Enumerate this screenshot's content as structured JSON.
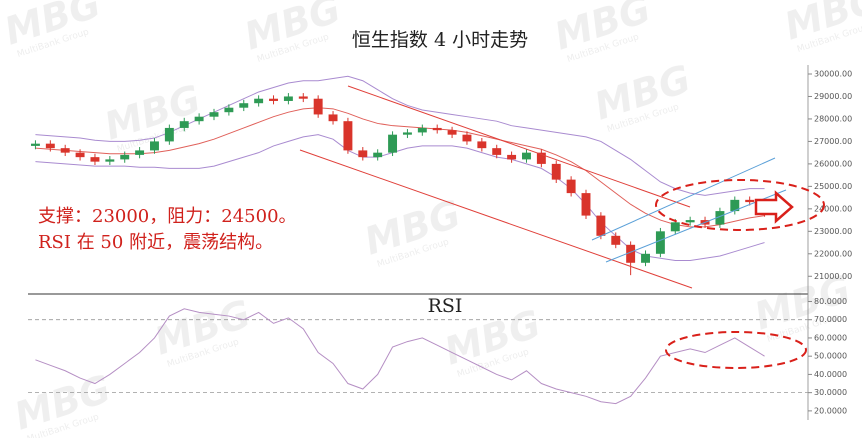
{
  "chart_data": [
    {
      "type": "candlestick",
      "title": "恒生指数 4 小时走势",
      "up_color": "#2e9a55",
      "down_color": "#d9342b",
      "candles": {
        "open": [
          26800,
          26900,
          26700,
          26500,
          26300,
          26100,
          26200,
          26400,
          26600,
          27000,
          27600,
          27900,
          28100,
          28300,
          28500,
          28700,
          28900,
          28800,
          29000,
          28900,
          28200,
          27900,
          26600,
          26300,
          26500,
          27300,
          27400,
          27600,
          27500,
          27300,
          27000,
          26700,
          26400,
          26200,
          26500,
          26000,
          25300,
          24700,
          23700,
          22800,
          22400,
          21600,
          22000,
          23000,
          23400,
          23500,
          23300,
          23900,
          24400,
          24300
        ],
        "high": [
          27050,
          27050,
          26850,
          26650,
          26450,
          26350,
          26550,
          26750,
          27150,
          27750,
          28050,
          28250,
          28450,
          28650,
          28850,
          29050,
          29050,
          29150,
          29150,
          29050,
          28350,
          28050,
          26750,
          26650,
          27450,
          27550,
          27750,
          27750,
          27650,
          27450,
          27150,
          26850,
          26550,
          26650,
          26650,
          26150,
          25450,
          24850,
          23850,
          22950,
          22550,
          22150,
          23150,
          23550,
          23650,
          23650,
          24050,
          24550,
          24550,
          24450
        ],
        "low": [
          26650,
          26550,
          26350,
          26150,
          25950,
          25950,
          26050,
          26250,
          26450,
          26850,
          27450,
          27750,
          27950,
          28150,
          28350,
          28550,
          28650,
          28650,
          28750,
          28050,
          27750,
          26450,
          26150,
          26150,
          26350,
          27150,
          27250,
          27350,
          27150,
          26850,
          26550,
          26250,
          26050,
          26050,
          25850,
          25150,
          24550,
          23550,
          22650,
          22250,
          21050,
          21450,
          21850,
          22850,
          23250,
          23150,
          23150,
          23750,
          24150,
          23650
        ],
        "close": [
          26900,
          26700,
          26500,
          26300,
          26100,
          26200,
          26400,
          26600,
          27000,
          27600,
          27900,
          28100,
          28300,
          28500,
          28700,
          28900,
          28800,
          29000,
          28900,
          28200,
          27900,
          26600,
          26300,
          26500,
          27300,
          27400,
          27600,
          27500,
          27300,
          27000,
          26700,
          26400,
          26200,
          26500,
          26000,
          25300,
          24700,
          23700,
          22800,
          22400,
          21600,
          22000,
          23000,
          23400,
          23500,
          23300,
          23900,
          24400,
          24300,
          23800
        ]
      },
      "series": [
        {
          "color": "#a98bd0",
          "values": [
            27300,
            27250,
            27200,
            27150,
            27050,
            27000,
            27000,
            27050,
            27150,
            27400,
            27700,
            28000,
            28300,
            28600,
            28900,
            29200,
            29400,
            29600,
            29700,
            29700,
            29800,
            29900,
            29700,
            29300,
            28900,
            28600,
            28400,
            28300,
            28200,
            28100,
            28000,
            27900,
            27700,
            27600,
            27500,
            27400,
            27300,
            27200,
            27000,
            26600,
            26200,
            25700,
            25200,
            24900,
            24700,
            24600,
            24700,
            24800,
            24900,
            24900
          ]
        },
        {
          "color": "#e0605a",
          "values": [
            26700,
            26650,
            26600,
            26550,
            26500,
            26450,
            26450,
            26450,
            26500,
            26600,
            26750,
            26900,
            27100,
            27350,
            27600,
            27850,
            28100,
            28300,
            28450,
            28500,
            28450,
            28250,
            28000,
            27800,
            27700,
            27650,
            27600,
            27550,
            27500,
            27400,
            27250,
            27100,
            26950,
            26800,
            26650,
            26400,
            26100,
            25700,
            25200,
            24700,
            24200,
            23800,
            23500,
            23300,
            23200,
            23200,
            23300,
            23450,
            23600,
            23700
          ]
        },
        {
          "color": "#a98bd0",
          "values": [
            26100,
            26050,
            26000,
            25950,
            25900,
            25900,
            25900,
            25850,
            25850,
            25800,
            25800,
            25800,
            25900,
            26100,
            26300,
            26500,
            26800,
            27000,
            27200,
            27300,
            27100,
            26600,
            26300,
            26300,
            26500,
            26700,
            26800,
            26800,
            26800,
            26700,
            26500,
            26300,
            26200,
            26000,
            25800,
            25400,
            24900,
            24200,
            23400,
            22800,
            22200,
            21900,
            21800,
            21700,
            21700,
            21800,
            21900,
            22100,
            22300,
            22500
          ]
        }
      ],
      "ylim": [
        20300,
        30400
      ],
      "yticks": [
        {
          "value": 30000,
          "label": "30000.00"
        },
        {
          "value": 29000,
          "label": "29000.00"
        },
        {
          "value": 28000,
          "label": "28000.00"
        },
        {
          "value": 27000,
          "label": "27000.00"
        },
        {
          "value": 26000,
          "label": "26000.00"
        },
        {
          "value": 25000,
          "label": "25000.00"
        },
        {
          "value": 24000,
          "label": "24000.00"
        },
        {
          "value": 23000,
          "label": "23000.00"
        },
        {
          "value": 22000,
          "label": "22000.00"
        },
        {
          "value": 21000,
          "label": "21000.00"
        }
      ],
      "annotations": [
        "支撑：23000，阻力：24500。",
        "RSI 在 50 附近，震荡结构。"
      ],
      "watermark": "MBG",
      "watermark_sub": "MultiBank Group"
    },
    {
      "type": "line",
      "title": "RSI",
      "series": [
        {
          "color": "#b58fc4",
          "values": [
            48,
            45,
            42,
            38,
            35,
            40,
            46,
            52,
            60,
            72,
            76,
            74,
            73,
            72,
            70,
            74,
            68,
            71,
            65,
            52,
            46,
            35,
            32,
            40,
            55,
            58,
            60,
            56,
            52,
            48,
            44,
            40,
            37,
            42,
            35,
            32,
            30,
            28,
            25,
            24,
            28,
            38,
            50,
            52,
            54,
            52,
            56,
            60,
            55,
            50
          ]
        }
      ],
      "levels": [
        70,
        30
      ],
      "ylim": [
        15,
        83
      ],
      "yticks": [
        {
          "value": 80,
          "label": "80.0000"
        },
        {
          "value": 70,
          "label": "70.0000"
        },
        {
          "value": 60,
          "label": "60.0000"
        },
        {
          "value": 50,
          "label": "50.0000"
        },
        {
          "value": 40,
          "label": "40.0000"
        },
        {
          "value": 30,
          "label": "30.0000"
        },
        {
          "value": 20,
          "label": "20.0000"
        }
      ]
    }
  ]
}
